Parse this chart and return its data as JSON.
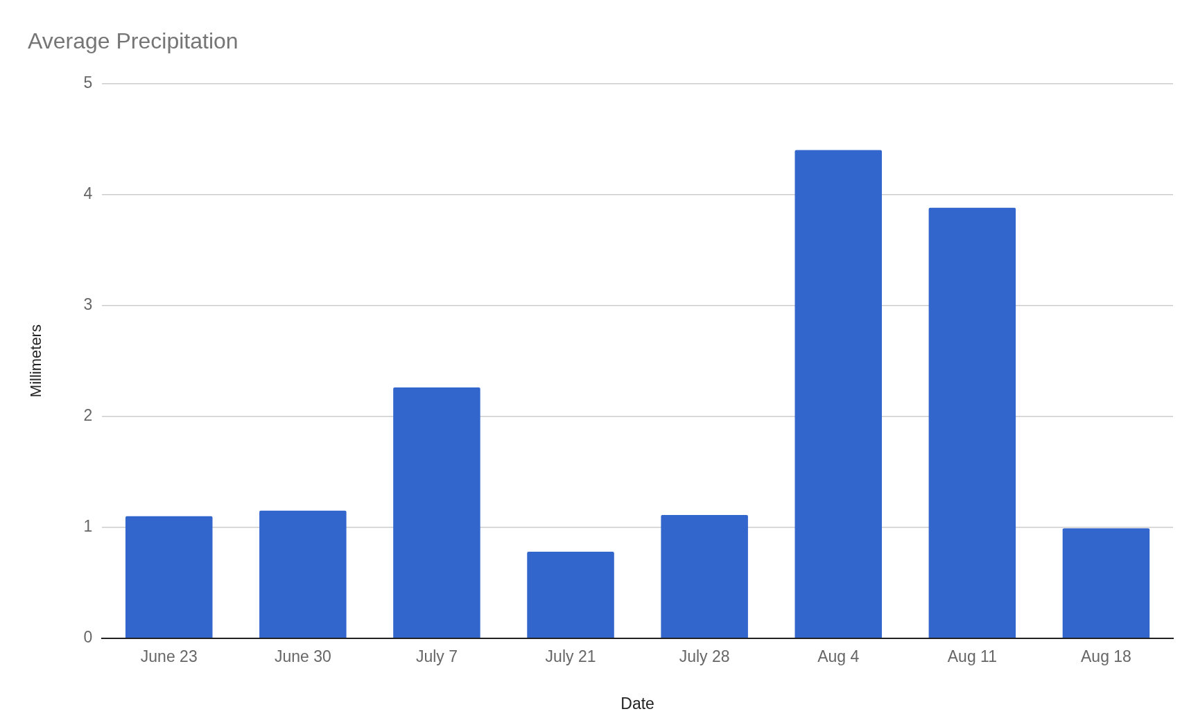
{
  "chart_data": {
    "type": "bar",
    "title": "Average Precipitation",
    "xlabel": "Date",
    "ylabel": "Millimeters",
    "categories": [
      "June 23",
      "June 30",
      "July 7",
      "July 21",
      "July 28",
      "Aug 4",
      "Aug 11",
      "Aug 18"
    ],
    "values": [
      1.1,
      1.15,
      2.26,
      0.78,
      1.11,
      4.4,
      3.88,
      0.99
    ],
    "color": "#3366cc",
    "ylim": [
      0,
      5
    ],
    "yticks": [
      0,
      1,
      2,
      3,
      4,
      5
    ],
    "grid": "y"
  }
}
